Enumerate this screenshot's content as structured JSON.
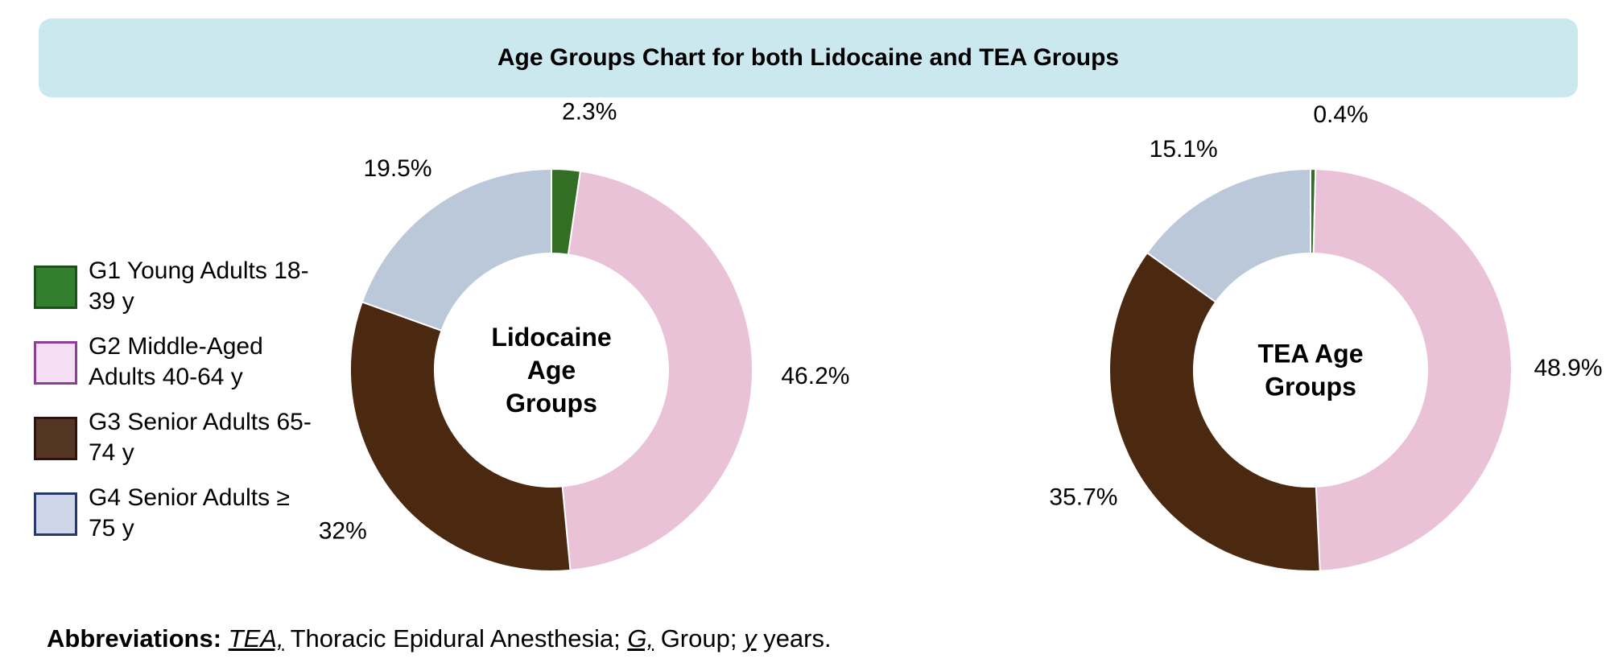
{
  "title": "Age Groups Chart for both Lidocaine and TEA Groups",
  "legend": [
    {
      "label": "G1 Young Adults 18-39 y",
      "color": "#32802f",
      "border": "#1f4f1d"
    },
    {
      "label": "G2 Middle-Aged Adults 40-64 y",
      "color": "#f4def4",
      "border": "#8b3f95"
    },
    {
      "label": "G3 Senior Adults 65-74 y",
      "color": "#553624",
      "border": "#2c140c"
    },
    {
      "label": "G4 Senior Adults ≥ 75 y",
      "color": "#cfd6ea",
      "border": "#27386a"
    }
  ],
  "chart_data": [
    {
      "type": "pie",
      "center_label": [
        "Lidocaine",
        "Age",
        "Groups"
      ],
      "categories": [
        "G1 Young Adults 18-39 y",
        "G2 Middle-Aged Adults 40-64 y",
        "G3 Senior Adults 65-74 y",
        "G4 Senior Adults ≥ 75 y"
      ],
      "values": [
        2.3,
        46.2,
        32,
        19.5
      ],
      "labels": [
        "2.3%",
        "46.2%",
        "32%",
        "19.5%"
      ],
      "colors": [
        "#326f24",
        "#e9c2d7",
        "#4b2810",
        "#bac8d9"
      ]
    },
    {
      "type": "pie",
      "center_label": [
        "TEA Age",
        "Groups"
      ],
      "categories": [
        "G1 Young Adults 18-39 y",
        "G2 Middle-Aged Adults 40-64 y",
        "G3 Senior Adults 65-74 y",
        "G4 Senior Adults ≥ 75 y"
      ],
      "values": [
        0.4,
        48.9,
        35.7,
        15.1
      ],
      "labels": [
        "0.4%",
        "48.9%",
        "35.7%",
        "15.1%"
      ],
      "colors": [
        "#326f24",
        "#e9c2d7",
        "#4b2810",
        "#bac8d9"
      ]
    }
  ],
  "footnote": {
    "lead": "Abbreviations:",
    "abbr1": "TEA,",
    "def1": " Thoracic Epidural Anesthesia; ",
    "abbr2": "G,",
    "def2": " Group; ",
    "abbr3": "y",
    "def3": " years."
  }
}
